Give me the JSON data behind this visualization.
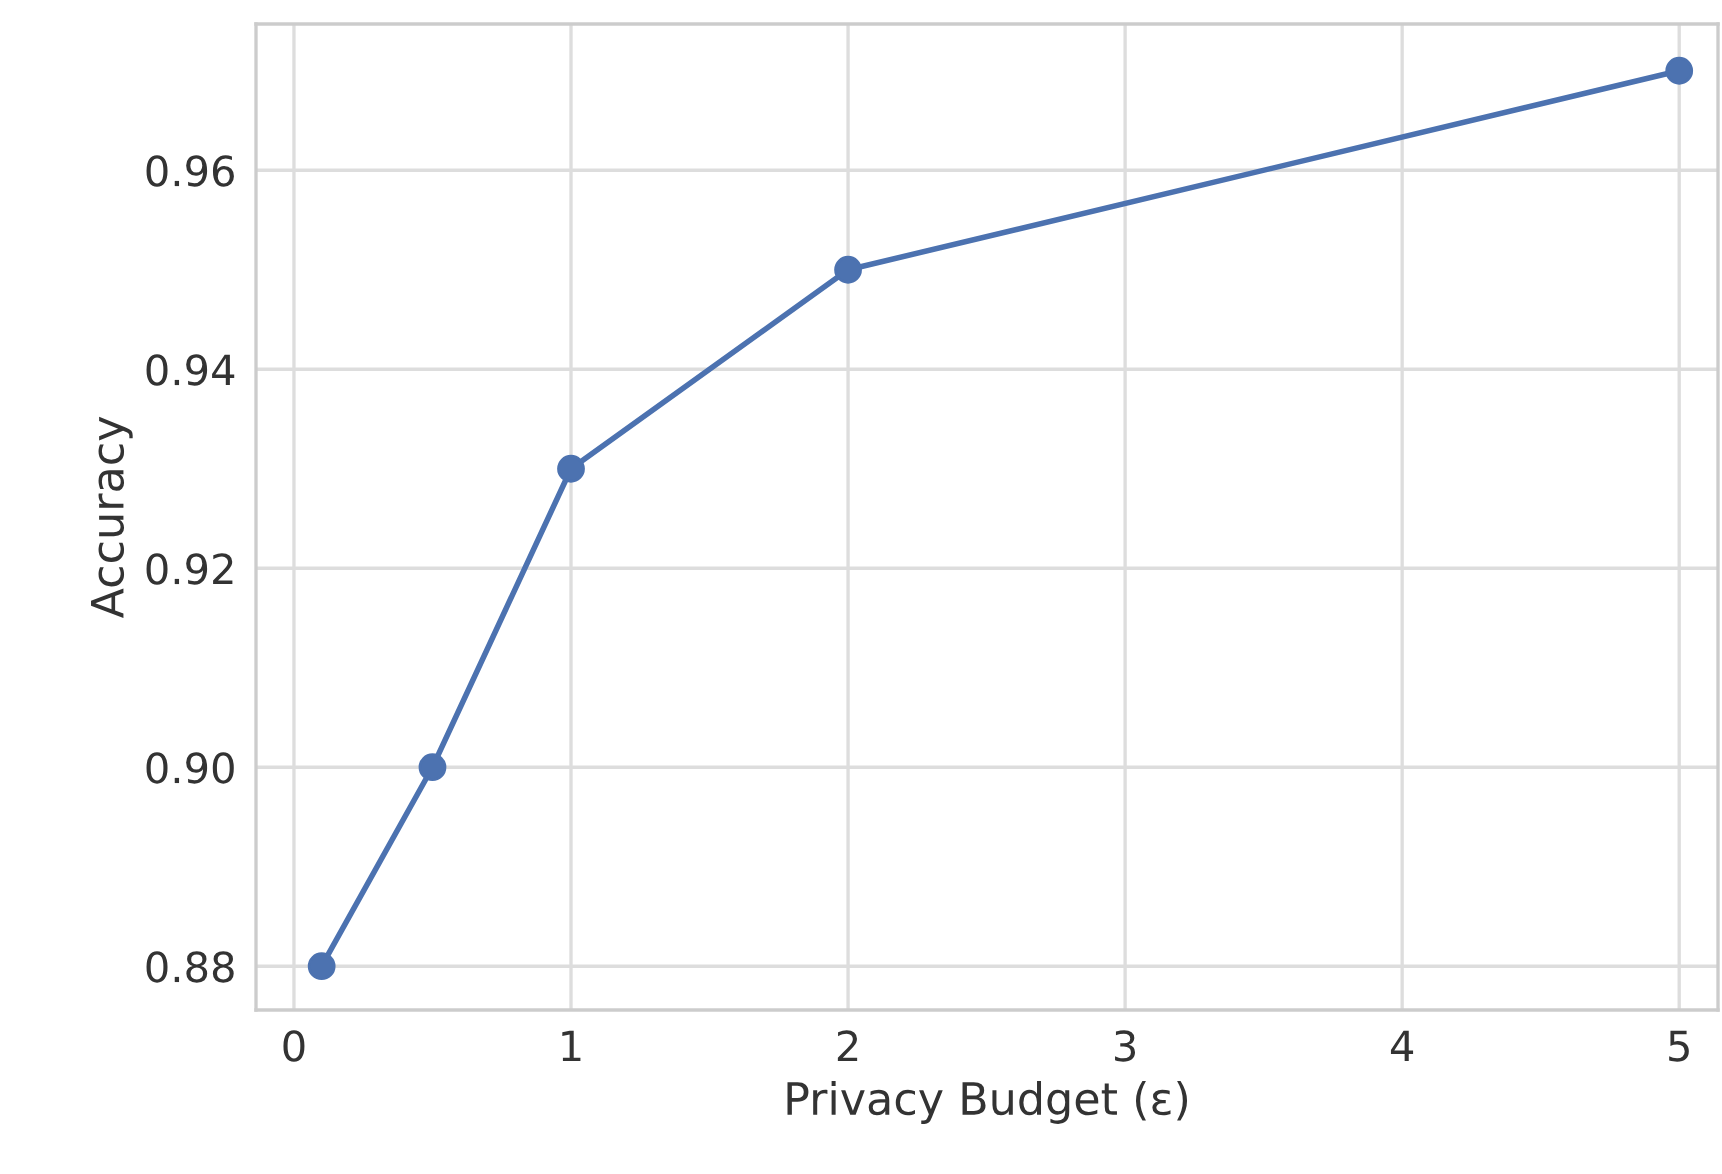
{
  "chart_data": {
    "type": "line",
    "xlabel": "Privacy Budget (ε)",
    "ylabel": "Accuracy",
    "x": [
      0.1,
      0.5,
      1,
      2,
      5
    ],
    "series": [
      {
        "color": "#4c72b0",
        "values": [
          0.88,
          0.9,
          0.93,
          0.95,
          0.97
        ]
      }
    ],
    "xlim": [
      -0.137,
      5.14
    ],
    "ylim": [
      0.8756,
      0.9747
    ],
    "xticks": [
      0,
      1,
      2,
      3,
      4,
      5
    ],
    "yticks": [
      {
        "value": 0.88,
        "label": "0.88"
      },
      {
        "value": 0.9,
        "label": "0.90"
      },
      {
        "value": 0.92,
        "label": "0.92"
      },
      {
        "value": 0.94,
        "label": "0.94"
      },
      {
        "value": 0.96,
        "label": "0.96"
      }
    ],
    "grid": true,
    "marker": "circle",
    "line_style": "solid"
  }
}
